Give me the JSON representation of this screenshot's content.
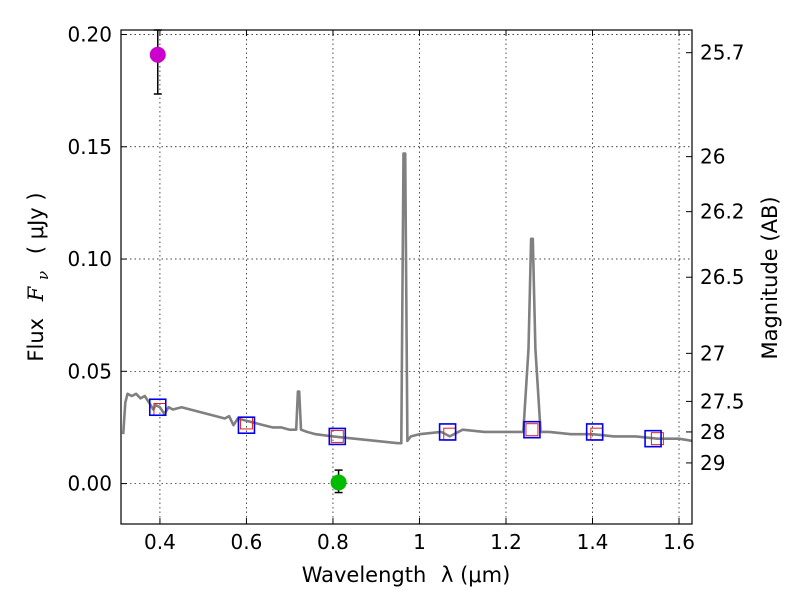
{
  "chart_data": {
    "type": "line",
    "title": "",
    "xlabel": "Wavelength",
    "xlabel_math": "λ (μm)",
    "ylabel": "Flux",
    "ylabel_math": "F",
    "ylabel_math_sub": "ν",
    "ylabel_unit": "( μJy )",
    "y2label": "Magnitude (AB)",
    "xlim": [
      0.31,
      1.63
    ],
    "ylim": [
      -0.018,
      0.202
    ],
    "grid": true,
    "xticks": [
      0.4,
      0.6,
      0.8,
      1.0,
      1.2,
      1.4,
      1.6
    ],
    "xtick_labels": [
      "0.4",
      "0.6",
      "0.8",
      "1",
      "1.2",
      "1.4",
      "1.6"
    ],
    "yticks": [
      0.0,
      0.05,
      0.1,
      0.15,
      0.2
    ],
    "ytick_labels": [
      "0.00",
      "0.05",
      "0.10",
      "0.15",
      "0.20"
    ],
    "mag_ticks": [
      {
        "label": "25.7",
        "flux": 0.1919
      },
      {
        "label": "26",
        "flux": 0.1456
      },
      {
        "label": "26.2",
        "flux": 0.1211
      },
      {
        "label": "26.5",
        "flux": 0.0919
      },
      {
        "label": "27",
        "flux": 0.058
      },
      {
        "label": "27.5",
        "flux": 0.0366
      },
      {
        "label": "28",
        "flux": 0.023
      },
      {
        "label": "29",
        "flux": 0.0092
      }
    ],
    "spectrum": {
      "color": "#808080",
      "points": [
        [
          0.315,
          0.022
        ],
        [
          0.32,
          0.036
        ],
        [
          0.325,
          0.04
        ],
        [
          0.335,
          0.039
        ],
        [
          0.345,
          0.04
        ],
        [
          0.355,
          0.038
        ],
        [
          0.365,
          0.039
        ],
        [
          0.375,
          0.036
        ],
        [
          0.385,
          0.033
        ],
        [
          0.39,
          0.035
        ],
        [
          0.4,
          0.034
        ],
        [
          0.41,
          0.031
        ],
        [
          0.42,
          0.034
        ],
        [
          0.43,
          0.033
        ],
        [
          0.45,
          0.034
        ],
        [
          0.47,
          0.033
        ],
        [
          0.49,
          0.032
        ],
        [
          0.51,
          0.031
        ],
        [
          0.53,
          0.03
        ],
        [
          0.55,
          0.029
        ],
        [
          0.56,
          0.03
        ],
        [
          0.57,
          0.026
        ],
        [
          0.58,
          0.029
        ],
        [
          0.6,
          0.028
        ],
        [
          0.62,
          0.027
        ],
        [
          0.64,
          0.026
        ],
        [
          0.66,
          0.025
        ],
        [
          0.68,
          0.025
        ],
        [
          0.7,
          0.024
        ],
        [
          0.715,
          0.024
        ],
        [
          0.719,
          0.041
        ],
        [
          0.722,
          0.041
        ],
        [
          0.726,
          0.024
        ],
        [
          0.74,
          0.023
        ],
        [
          0.76,
          0.022
        ],
        [
          0.8,
          0.021
        ],
        [
          0.85,
          0.02
        ],
        [
          0.9,
          0.019
        ],
        [
          0.95,
          0.018
        ],
        [
          0.958,
          0.018
        ],
        [
          0.963,
          0.147
        ],
        [
          0.967,
          0.147
        ],
        [
          0.972,
          0.019
        ],
        [
          0.98,
          0.021
        ],
        [
          1.0,
          0.022
        ],
        [
          1.05,
          0.023
        ],
        [
          1.07,
          0.021
        ],
        [
          1.1,
          0.024
        ],
        [
          1.15,
          0.023
        ],
        [
          1.2,
          0.023
        ],
        [
          1.24,
          0.023
        ],
        [
          1.252,
          0.06
        ],
        [
          1.258,
          0.109
        ],
        [
          1.262,
          0.109
        ],
        [
          1.268,
          0.06
        ],
        [
          1.28,
          0.023
        ],
        [
          1.3,
          0.023
        ],
        [
          1.35,
          0.022
        ],
        [
          1.4,
          0.022
        ],
        [
          1.45,
          0.021
        ],
        [
          1.5,
          0.021
        ],
        [
          1.55,
          0.02
        ],
        [
          1.6,
          0.02
        ],
        [
          1.63,
          0.019
        ]
      ]
    },
    "model_photometry": {
      "color": "#dd2222",
      "points": [
        [
          0.4,
          0.033
        ],
        [
          0.6,
          0.027
        ],
        [
          0.81,
          0.021
        ],
        [
          1.07,
          0.022
        ],
        [
          1.26,
          0.024
        ],
        [
          1.41,
          0.022
        ],
        [
          1.55,
          0.02
        ]
      ]
    },
    "observed_squares": {
      "color": "#0000ee",
      "points": [
        [
          0.395,
          0.034
        ],
        [
          0.6,
          0.026
        ],
        [
          0.81,
          0.021
        ],
        [
          1.065,
          0.023
        ],
        [
          1.26,
          0.024
        ],
        [
          1.405,
          0.023
        ],
        [
          1.54,
          0.02
        ]
      ]
    },
    "measurements": [
      {
        "name": "magenta-point",
        "x": 0.395,
        "y": 0.191,
        "yerr": [
          0.0175,
          0.011
        ],
        "color": "#cc00cc"
      },
      {
        "name": "green-point",
        "x": 0.813,
        "y": 0.0005,
        "yerr": [
          0.0045,
          0.0055
        ],
        "color": "#00bb00"
      }
    ]
  }
}
